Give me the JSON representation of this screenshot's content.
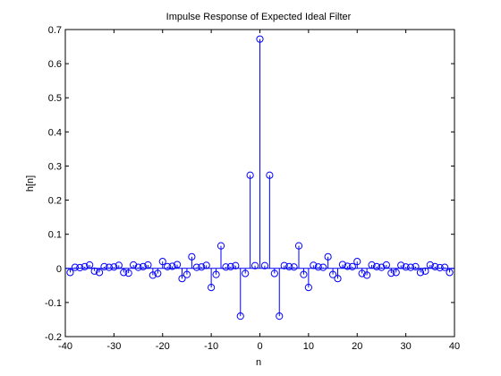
{
  "chart_data": {
    "type": "stem",
    "title": "Impulse Response of Expected Ideal Filter",
    "xlabel": "n",
    "ylabel": "h[n]",
    "xlim": [
      -40,
      40
    ],
    "ylim": [
      -0.2,
      0.7
    ],
    "x_ticks": [
      -40,
      -30,
      -20,
      -10,
      0,
      10,
      20,
      30,
      40
    ],
    "x_tick_labels": [
      "-40",
      "-30",
      "-20",
      "-10",
      "0",
      "10",
      "20",
      "30",
      "40"
    ],
    "y_ticks": [
      -0.2,
      -0.1,
      0,
      0.1,
      0.2,
      0.3,
      0.4,
      0.5,
      0.6,
      0.7
    ],
    "y_tick_labels": [
      "-0.2",
      "-0.1",
      "0",
      "0.1",
      "0.2",
      "0.3",
      "0.4",
      "0.5",
      "0.6",
      "0.7"
    ],
    "grid": false,
    "color": "#0000ff",
    "series": [
      {
        "x": [
          -39,
          -38,
          -37,
          -36,
          -35,
          -34,
          -33,
          -32,
          -31,
          -30,
          -29,
          -28,
          -27,
          -26,
          -25,
          -24,
          -23,
          -22,
          -21,
          -20,
          -19,
          -18,
          -17,
          -16,
          -15,
          -14,
          -13,
          -12,
          -11,
          -10,
          -9,
          -8,
          -7,
          -6,
          -5,
          -4,
          -3,
          -2,
          -1,
          0,
          1,
          2,
          3,
          4,
          5,
          6,
          7,
          8,
          9,
          10,
          11,
          12,
          13,
          14,
          15,
          16,
          17,
          18,
          19,
          20,
          21,
          22,
          23,
          24,
          25,
          26,
          27,
          28,
          29,
          30,
          31,
          32,
          33,
          34,
          35,
          36,
          37,
          38,
          39
        ],
        "y": [
          -0.012,
          0.003,
          0.002,
          0.005,
          0.01,
          -0.008,
          -0.012,
          0.005,
          0.003,
          0.004,
          0.009,
          -0.012,
          -0.014,
          0.01,
          0.003,
          0.005,
          0.01,
          -0.02,
          -0.015,
          0.02,
          0.005,
          0.006,
          0.011,
          -0.03,
          -0.018,
          0.034,
          0.003,
          0.004,
          0.009,
          -0.056,
          -0.018,
          0.066,
          0.004,
          0.005,
          0.008,
          -0.14,
          -0.015,
          0.273,
          0.008,
          0.672,
          0.008,
          0.273,
          -0.015,
          -0.14,
          0.008,
          0.005,
          0.004,
          0.066,
          -0.018,
          -0.056,
          0.009,
          0.004,
          0.003,
          0.034,
          -0.018,
          -0.03,
          0.011,
          0.006,
          0.005,
          0.02,
          -0.015,
          -0.02,
          0.01,
          0.005,
          0.003,
          0.01,
          -0.014,
          -0.012,
          0.009,
          0.004,
          0.003,
          0.005,
          -0.012,
          -0.008,
          0.01,
          0.005,
          0.002,
          0.003,
          -0.012
        ]
      }
    ]
  }
}
